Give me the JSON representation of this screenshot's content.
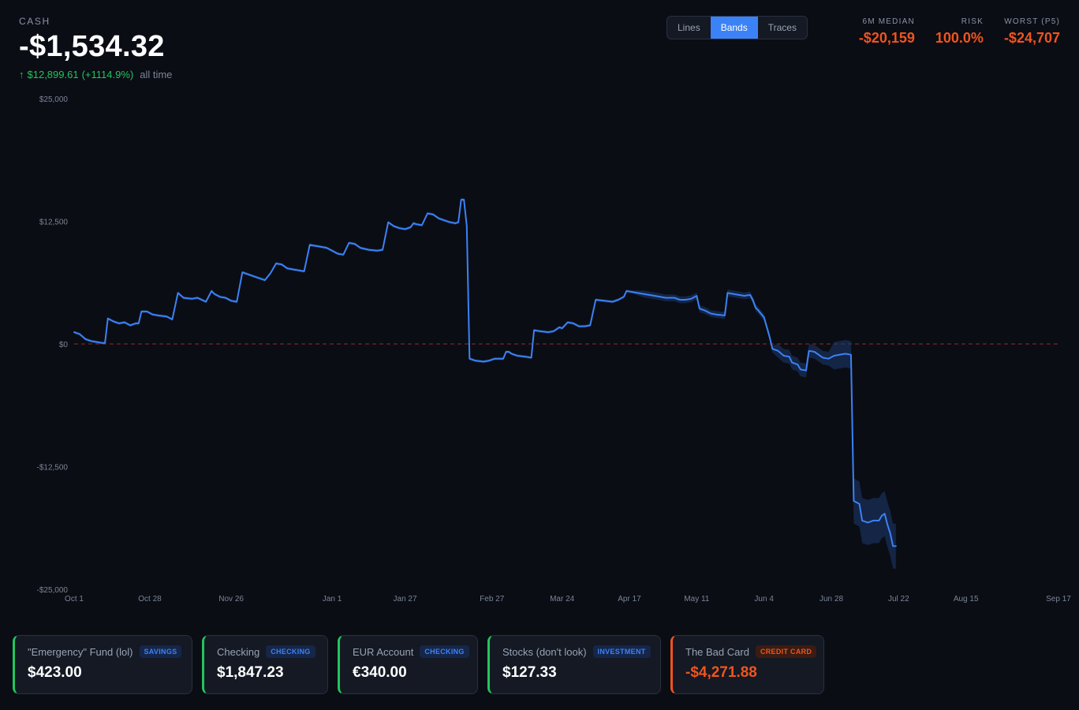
{
  "header": {
    "label": "CASH",
    "balance": "-$1,534.32",
    "change_arrow": "↑",
    "change_amount": "$12,899.61",
    "change_pct": "(+1114.9%)",
    "change_note": "all time"
  },
  "view_toggle": {
    "options": [
      "Lines",
      "Bands",
      "Traces"
    ],
    "selected": "Bands"
  },
  "stats": [
    {
      "label": "6M MEDIAN",
      "value": "-$20,159"
    },
    {
      "label": "RISK",
      "value": "100.0%"
    },
    {
      "label": "WORST (P5)",
      "value": "-$24,707"
    }
  ],
  "colors": {
    "background": "#0a0d14",
    "line": "#3b82f6",
    "band": "#1e3a6e",
    "zero_line": "#7a2424",
    "positive": "#22c55e",
    "negative": "#f0541e",
    "accent": "#3b82f6"
  },
  "chart_data": {
    "type": "line",
    "title": "",
    "xlabel": "",
    "ylabel": "",
    "ylim": [
      -25000,
      25000
    ],
    "y_ticks": [
      {
        "value": 25000,
        "label": "$25,000"
      },
      {
        "value": 12500,
        "label": "$12,500"
      },
      {
        "value": 0,
        "label": "$0"
      },
      {
        "value": -12500,
        "label": "-$12,500"
      },
      {
        "value": -25000,
        "label": "-$25,000"
      }
    ],
    "x_ticks": [
      {
        "day": 0,
        "label": "Oct 1"
      },
      {
        "day": 27,
        "label": "Oct 28"
      },
      {
        "day": 56,
        "label": "Nov 26"
      },
      {
        "day": 92,
        "label": "Jan 1"
      },
      {
        "day": 118,
        "label": "Jan 27"
      },
      {
        "day": 149,
        "label": "Feb 27"
      },
      {
        "day": 174,
        "label": "Mar 24"
      },
      {
        "day": 198,
        "label": "Apr 17"
      },
      {
        "day": 222,
        "label": "May 11"
      },
      {
        "day": 246,
        "label": "Jun 4"
      },
      {
        "day": 270,
        "label": "Jun 28"
      },
      {
        "day": 294,
        "label": "Jul 22"
      },
      {
        "day": 318,
        "label": "Aug 15"
      },
      {
        "day": 351,
        "label": "Sep 17"
      }
    ],
    "zero_line": true,
    "grid": false,
    "series": [
      {
        "points": [
          [
            0,
            1200
          ],
          [
            2,
            1000
          ],
          [
            4,
            500
          ],
          [
            6,
            300
          ],
          [
            8,
            200
          ],
          [
            10,
            100
          ],
          [
            11,
            100
          ],
          [
            12,
            2600
          ],
          [
            14,
            2300
          ],
          [
            16,
            2100
          ],
          [
            18,
            2200
          ],
          [
            20,
            1900
          ],
          [
            21,
            2000
          ],
          [
            22,
            2100
          ],
          [
            23,
            2100
          ],
          [
            24,
            3300
          ],
          [
            26,
            3300
          ],
          [
            28,
            3000
          ],
          [
            30,
            2900
          ],
          [
            33,
            2800
          ],
          [
            35,
            2500
          ],
          [
            37,
            5200
          ],
          [
            39,
            4700
          ],
          [
            42,
            4600
          ],
          [
            44,
            4700
          ],
          [
            47,
            4300
          ],
          [
            49,
            5400
          ],
          [
            50,
            5100
          ],
          [
            52,
            4800
          ],
          [
            54,
            4700
          ],
          [
            56,
            4400
          ],
          [
            58,
            4300
          ],
          [
            60,
            7300
          ],
          [
            63,
            7000
          ],
          [
            66,
            6700
          ],
          [
            68,
            6500
          ],
          [
            70,
            7200
          ],
          [
            72,
            8200
          ],
          [
            74,
            8100
          ],
          [
            76,
            7700
          ],
          [
            78,
            7600
          ],
          [
            80,
            7500
          ],
          [
            82,
            7400
          ],
          [
            84,
            10100
          ],
          [
            86,
            10000
          ],
          [
            90,
            9800
          ],
          [
            92,
            9500
          ],
          [
            94,
            9200
          ],
          [
            96,
            9100
          ],
          [
            98,
            10300
          ],
          [
            100,
            10200
          ],
          [
            102,
            9800
          ],
          [
            105,
            9600
          ],
          [
            108,
            9500
          ],
          [
            110,
            9600
          ],
          [
            112,
            12400
          ],
          [
            114,
            12000
          ],
          [
            116,
            11800
          ],
          [
            118,
            11700
          ],
          [
            120,
            11900
          ],
          [
            121,
            12300
          ],
          [
            122,
            12200
          ],
          [
            124,
            12100
          ],
          [
            126,
            13300
          ],
          [
            128,
            13200
          ],
          [
            130,
            12800
          ],
          [
            132,
            12600
          ],
          [
            134,
            12400
          ],
          [
            136,
            12300
          ],
          [
            137,
            12400
          ],
          [
            138,
            14700
          ],
          [
            139,
            14700
          ],
          [
            140,
            12000
          ],
          [
            141,
            -1500
          ],
          [
            143,
            -1700
          ],
          [
            146,
            -1800
          ],
          [
            148,
            -1700
          ],
          [
            150,
            -1500
          ],
          [
            153,
            -1500
          ],
          [
            154,
            -800
          ],
          [
            155,
            -800
          ],
          [
            156,
            -1000
          ],
          [
            158,
            -1200
          ],
          [
            161,
            -1300
          ],
          [
            163,
            -1400
          ],
          [
            164,
            1400
          ],
          [
            166,
            1300
          ],
          [
            169,
            1200
          ],
          [
            171,
            1300
          ],
          [
            173,
            1700
          ],
          [
            174,
            1600
          ],
          [
            176,
            2200
          ],
          [
            178,
            2100
          ],
          [
            180,
            1800
          ],
          [
            182,
            1800
          ],
          [
            184,
            1900
          ],
          [
            186,
            4500
          ],
          [
            189,
            4400
          ],
          [
            192,
            4300
          ],
          [
            194,
            4500
          ],
          [
            196,
            4800
          ],
          [
            197,
            5400
          ],
          [
            199,
            5300
          ],
          [
            203,
            5100
          ],
          [
            207,
            4900
          ],
          [
            211,
            4700
          ],
          [
            214,
            4700
          ],
          [
            216,
            4500
          ],
          [
            218,
            4500
          ],
          [
            220,
            4600
          ],
          [
            222,
            4900
          ],
          [
            223,
            3600
          ],
          [
            225,
            3400
          ],
          [
            227,
            3100
          ],
          [
            229,
            3000
          ],
          [
            232,
            2900
          ],
          [
            233,
            5200
          ],
          [
            235,
            5100
          ],
          [
            239,
            4900
          ],
          [
            241,
            5000
          ],
          [
            242,
            4500
          ],
          [
            243,
            3700
          ],
          [
            244,
            3400
          ],
          [
            246,
            2700
          ],
          [
            248,
            700
          ],
          [
            249,
            -500
          ],
          [
            251,
            -700
          ],
          [
            253,
            -1200
          ],
          [
            255,
            -1300
          ],
          [
            256,
            -1900
          ],
          [
            258,
            -2100
          ],
          [
            259,
            -2600
          ],
          [
            261,
            -2700
          ],
          [
            262,
            -700
          ],
          [
            264,
            -800
          ],
          [
            267,
            -1400
          ],
          [
            269,
            -1500
          ],
          [
            271,
            -1200
          ],
          [
            275,
            -1000
          ],
          [
            277,
            -1100
          ],
          [
            278,
            -16000
          ],
          [
            280,
            -16300
          ],
          [
            281,
            -18000
          ],
          [
            283,
            -18200
          ],
          [
            285,
            -18000
          ],
          [
            287,
            -18000
          ],
          [
            288,
            -17500
          ],
          [
            289,
            -17300
          ],
          [
            290,
            -18400
          ],
          [
            291,
            -19300
          ],
          [
            292,
            -20600
          ],
          [
            293,
            -20600
          ]
        ]
      }
    ]
  },
  "accounts": [
    {
      "name": "\"Emergency\" Fund (lol)",
      "type": "SAVINGS",
      "amount": "$423.00"
    },
    {
      "name": "Checking",
      "type": "CHECKING",
      "amount": "$1,847.23"
    },
    {
      "name": "EUR Account",
      "type": "CHECKING",
      "amount": "€340.00"
    },
    {
      "name": "Stocks (don't look)",
      "type": "INVESTMENT",
      "amount": "$127.33"
    },
    {
      "name": "The Bad Card",
      "type": "CREDIT CARD",
      "amount": "-$4,271.88"
    }
  ]
}
